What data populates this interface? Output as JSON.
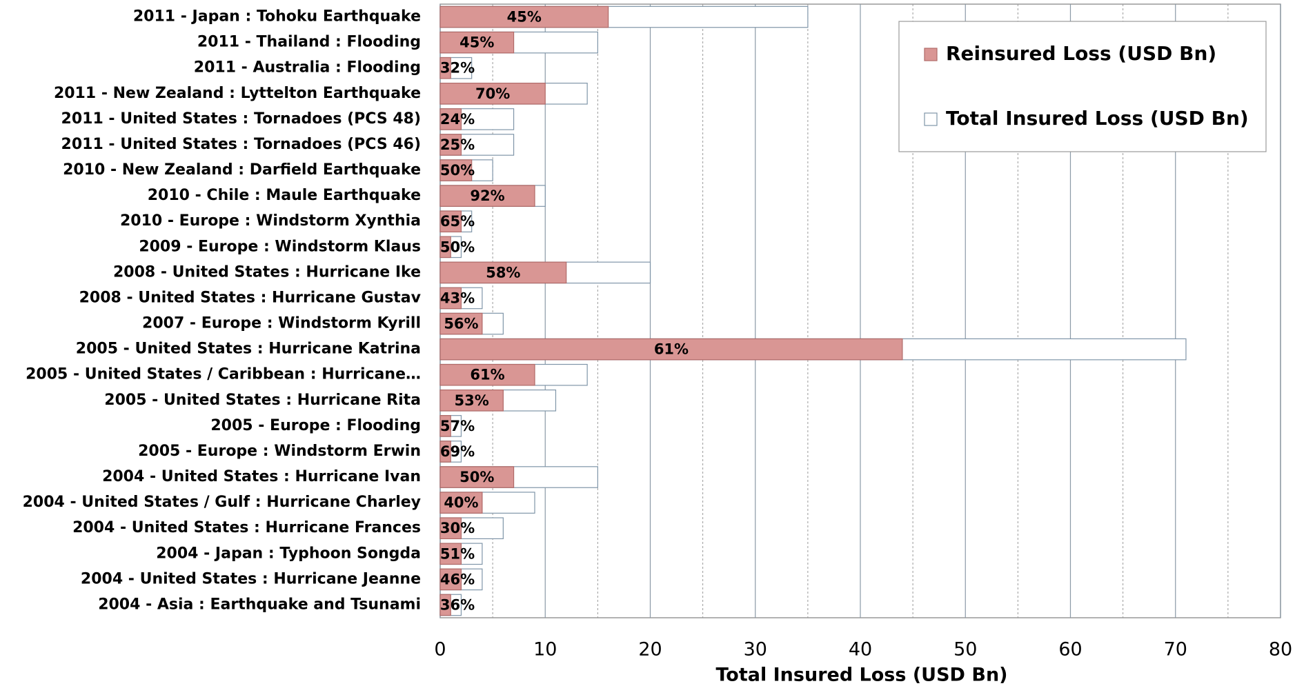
{
  "chart_data": {
    "type": "bar",
    "orientation": "horizontal",
    "x_label": "Total Insured Loss (USD Bn)",
    "categories": [
      "2011 - Japan : Tohoku Earthquake",
      "2011 - Thailand : Flooding",
      "2011 - Australia : Flooding",
      "2011 - New Zealand : Lyttelton Earthquake",
      "2011 - United States : Tornadoes (PCS 48)",
      "2011 - United States : Tornadoes (PCS 46)",
      "2010 - New Zealand : Darfield Earthquake",
      "2010 - Chile : Maule Earthquake",
      "2010 - Europe : Windstorm Xynthia",
      "2009 - Europe : Windstorm Klaus",
      "2008 - United States : Hurricane Ike",
      "2008 - United States : Hurricane Gustav",
      "2007 - Europe : Windstorm Kyrill",
      "2005 - United States : Hurricane Katrina",
      "2005 - United States / Caribbean : Hurricane…",
      "2005 - United States : Hurricane Rita",
      "2005 - Europe : Flooding",
      "2005 - Europe : Windstorm Erwin",
      "2004 - United States : Hurricane Ivan",
      "2004 - United States / Gulf : Hurricane Charley",
      "2004 - United States : Hurricane Frances",
      "2004 - Japan : Typhoon Songda",
      "2004 - United States : Hurricane Jeanne",
      "2004 - Asia : Earthquake and Tsunami"
    ],
    "series": [
      {
        "name": "Total Insured Loss (USD Bn)",
        "color": "#ffffff",
        "stroke": "#7f95a8",
        "values": [
          35,
          15,
          3,
          14,
          7,
          7,
          5,
          10,
          3,
          2,
          20,
          4,
          6,
          71,
          14,
          11,
          2,
          2,
          15,
          9,
          6,
          4,
          4,
          2
        ]
      },
      {
        "name": "Reinsured Loss (USD Bn)",
        "color": "#d99694",
        "stroke": "#b06a68",
        "values": [
          16,
          7,
          1,
          10,
          2,
          2,
          3,
          9,
          2,
          1,
          12,
          2,
          4,
          44,
          9,
          6,
          1,
          1,
          7,
          4,
          2,
          2,
          2,
          1
        ],
        "share_labels": [
          "45%",
          "45%",
          "32%",
          "70%",
          "24%",
          "25%",
          "50%",
          "92%",
          "65%",
          "50%",
          "58%",
          "43%",
          "56%",
          "61%",
          "61%",
          "53%",
          "57%",
          "69%",
          "50%",
          "40%",
          "30%",
          "51%",
          "46%",
          "36%"
        ]
      }
    ],
    "xlim": [
      0,
      80
    ],
    "xticks": [
      0,
      10,
      20,
      30,
      40,
      50,
      60,
      70,
      80
    ],
    "minor_xticks": [
      5,
      15,
      25,
      35,
      45,
      55,
      65,
      75
    ],
    "grid": true,
    "legend": "upper right"
  }
}
